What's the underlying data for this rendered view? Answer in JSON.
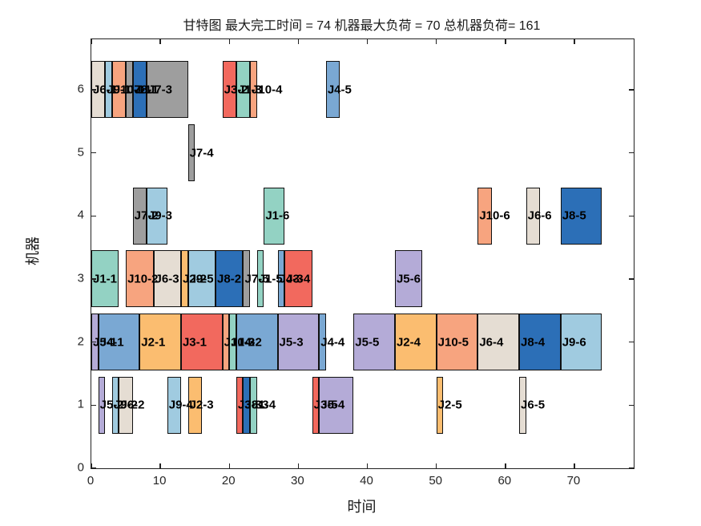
{
  "chart_data": {
    "type": "bar",
    "variant": "gantt",
    "title": "甘特图 最大完工时间 = 74 机器最大负荷 = 70 总机器负荷= 161",
    "xlabel": "时间",
    "ylabel": "机器",
    "makespan": 74,
    "max_machine_load": 70,
    "total_machine_load": 161,
    "xlim": [
      0,
      78.6
    ],
    "ylim": [
      0,
      6.8
    ],
    "x_ticks": [
      0,
      10,
      20,
      30,
      40,
      50,
      60,
      70
    ],
    "y_ticks": [
      0,
      1,
      2,
      3,
      4,
      5,
      6
    ],
    "grid": "off",
    "legend": "none",
    "job_colors": {
      "J1": "#93d2c3",
      "J2": "#fbbd70",
      "J3": "#f2695e",
      "J4": "#7aa8d3",
      "J5": "#b4abd7",
      "J6": "#e5ddd3",
      "J7": "#9e9e9e",
      "J8": "#2c6fb7",
      "J9": "#a0cbe0",
      "J10": "#f7a47f"
    },
    "tasks": [
      {
        "label": "J6-1",
        "job": "J6",
        "machine": 6,
        "start": 0,
        "end": 2
      },
      {
        "label": "J9-1",
        "job": "J9",
        "machine": 6,
        "start": 2,
        "end": 3
      },
      {
        "label": "J10-1",
        "job": "J10",
        "machine": 6,
        "start": 3,
        "end": 5
      },
      {
        "label": "J7-1",
        "job": "J7",
        "machine": 6,
        "start": 5,
        "end": 6
      },
      {
        "label": "J8-1",
        "job": "J8",
        "machine": 6,
        "start": 6,
        "end": 8
      },
      {
        "label": "J7-3",
        "job": "J7",
        "machine": 6,
        "start": 8,
        "end": 14
      },
      {
        "label": "J3-2",
        "job": "J3",
        "machine": 6,
        "start": 19,
        "end": 21
      },
      {
        "label": "J1-3",
        "job": "J1",
        "machine": 6,
        "start": 21,
        "end": 23
      },
      {
        "label": "J10-4",
        "job": "J10",
        "machine": 6,
        "start": 23,
        "end": 24
      },
      {
        "label": "J4-5",
        "job": "J4",
        "machine": 6,
        "start": 34,
        "end": 36
      },
      {
        "label": "J7-4",
        "job": "J7",
        "machine": 5,
        "start": 14,
        "end": 15
      },
      {
        "label": "J7-2",
        "job": "J7",
        "machine": 4,
        "start": 6,
        "end": 8
      },
      {
        "label": "J9-3",
        "job": "J9",
        "machine": 4,
        "start": 8,
        "end": 11
      },
      {
        "label": "J1-6",
        "job": "J1",
        "machine": 4,
        "start": 25,
        "end": 28
      },
      {
        "label": "J10-6",
        "job": "J10",
        "machine": 4,
        "start": 56,
        "end": 58
      },
      {
        "label": "J6-6",
        "job": "J6",
        "machine": 4,
        "start": 63,
        "end": 65
      },
      {
        "label": "J8-5",
        "job": "J8",
        "machine": 4,
        "start": 68,
        "end": 74
      },
      {
        "label": "J1-1",
        "job": "J1",
        "machine": 3,
        "start": 0,
        "end": 4
      },
      {
        "label": "J10-2",
        "job": "J10",
        "machine": 3,
        "start": 5,
        "end": 9
      },
      {
        "label": "J6-3",
        "job": "J6",
        "machine": 3,
        "start": 9,
        "end": 13
      },
      {
        "label": "J2-2",
        "job": "J2",
        "machine": 3,
        "start": 13,
        "end": 14
      },
      {
        "label": "J9-5",
        "job": "J9",
        "machine": 3,
        "start": 14,
        "end": 18
      },
      {
        "label": "J8-2",
        "job": "J8",
        "machine": 3,
        "start": 18,
        "end": 22
      },
      {
        "label": "J7-5",
        "job": "J7",
        "machine": 3,
        "start": 22,
        "end": 23
      },
      {
        "label": "J1-5",
        "job": "J1",
        "machine": 3,
        "start": 24,
        "end": 25
      },
      {
        "label": "J4-3",
        "job": "J4",
        "machine": 3,
        "start": 27,
        "end": 28
      },
      {
        "label": "J3-4",
        "job": "J3",
        "machine": 3,
        "start": 28,
        "end": 32
      },
      {
        "label": "J5-6",
        "job": "J5",
        "machine": 3,
        "start": 44,
        "end": 48
      },
      {
        "label": "J5-1",
        "job": "J5",
        "machine": 2,
        "start": 0,
        "end": 1
      },
      {
        "label": "J4-1",
        "job": "J4",
        "machine": 2,
        "start": 1,
        "end": 7
      },
      {
        "label": "J2-1",
        "job": "J2",
        "machine": 2,
        "start": 7,
        "end": 13
      },
      {
        "label": "J3-1",
        "job": "J3",
        "machine": 2,
        "start": 13,
        "end": 19
      },
      {
        "label": "J10-3",
        "job": "J10",
        "machine": 2,
        "start": 19,
        "end": 20
      },
      {
        "label": "J1-2",
        "job": "J1",
        "machine": 2,
        "start": 20,
        "end": 21
      },
      {
        "label": "J4-2",
        "job": "J4",
        "machine": 2,
        "start": 21,
        "end": 27
      },
      {
        "label": "J5-3",
        "job": "J5",
        "machine": 2,
        "start": 27,
        "end": 33
      },
      {
        "label": "J4-4",
        "job": "J4",
        "machine": 2,
        "start": 33,
        "end": 34
      },
      {
        "label": "J5-5",
        "job": "J5",
        "machine": 2,
        "start": 38,
        "end": 44
      },
      {
        "label": "J2-4",
        "job": "J2",
        "machine": 2,
        "start": 44,
        "end": 50
      },
      {
        "label": "J10-5",
        "job": "J10",
        "machine": 2,
        "start": 50,
        "end": 56
      },
      {
        "label": "J6-4",
        "job": "J6",
        "machine": 2,
        "start": 56,
        "end": 62
      },
      {
        "label": "J8-4",
        "job": "J8",
        "machine": 2,
        "start": 62,
        "end": 68
      },
      {
        "label": "J9-6",
        "job": "J9",
        "machine": 2,
        "start": 68,
        "end": 74
      },
      {
        "label": "J5-2",
        "job": "J5",
        "machine": 1,
        "start": 1,
        "end": 2
      },
      {
        "label": "J9-2",
        "job": "J9",
        "machine": 1,
        "start": 3,
        "end": 4
      },
      {
        "label": "J6-2",
        "job": "J6",
        "machine": 1,
        "start": 4,
        "end": 6
      },
      {
        "label": "J9-4",
        "job": "J9",
        "machine": 1,
        "start": 11,
        "end": 13
      },
      {
        "label": "J2-3",
        "job": "J2",
        "machine": 1,
        "start": 14,
        "end": 16
      },
      {
        "label": "J3-3",
        "job": "J3",
        "machine": 1,
        "start": 21,
        "end": 22
      },
      {
        "label": "J8-3",
        "job": "J8",
        "machine": 1,
        "start": 22,
        "end": 23
      },
      {
        "label": "J1-4",
        "job": "J1",
        "machine": 1,
        "start": 23,
        "end": 24
      },
      {
        "label": "J3-5",
        "job": "J3",
        "machine": 1,
        "start": 32,
        "end": 33
      },
      {
        "label": "J5-4",
        "job": "J5",
        "machine": 1,
        "start": 33,
        "end": 38
      },
      {
        "label": "J2-5",
        "job": "J2",
        "machine": 1,
        "start": 50,
        "end": 51
      },
      {
        "label": "J6-5",
        "job": "J6",
        "machine": 1,
        "start": 62,
        "end": 63
      }
    ]
  }
}
